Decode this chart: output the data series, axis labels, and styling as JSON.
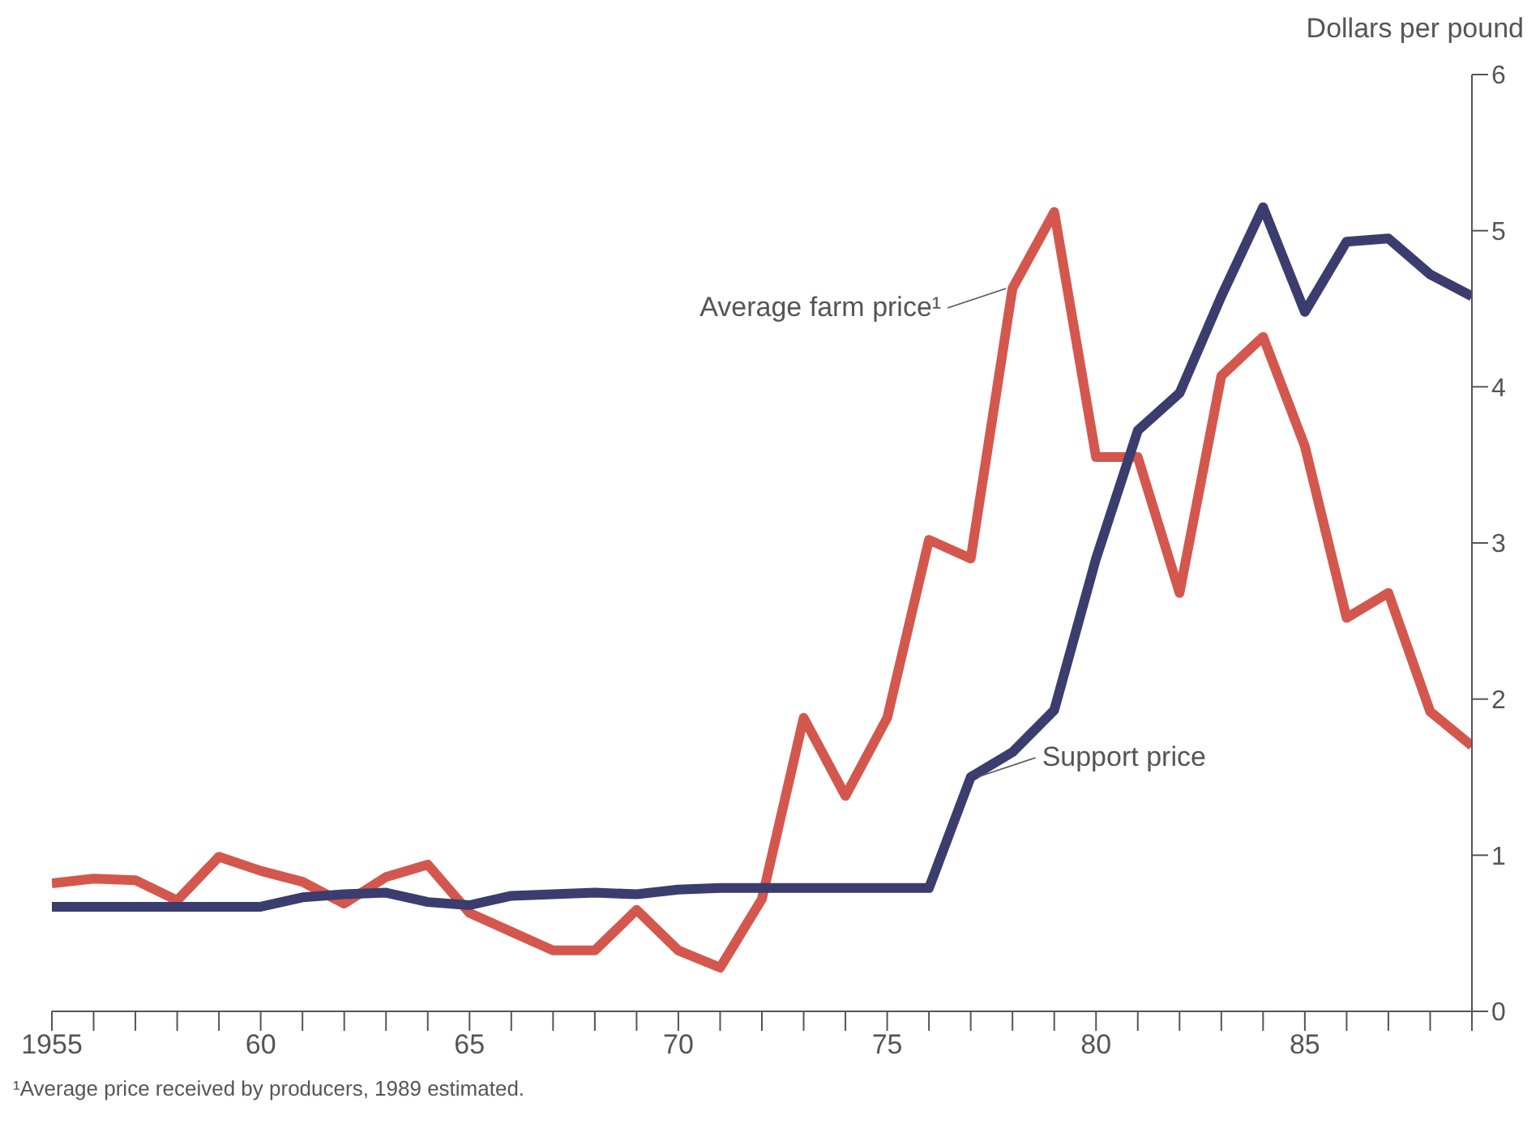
{
  "chart_data": {
    "type": "line",
    "ylabel": "Dollars per pound",
    "x": [
      1955,
      1956,
      1957,
      1958,
      1959,
      1960,
      1961,
      1962,
      1963,
      1964,
      1965,
      1966,
      1967,
      1968,
      1969,
      1970,
      1971,
      1972,
      1973,
      1974,
      1975,
      1976,
      1977,
      1978,
      1979,
      1980,
      1981,
      1982,
      1983,
      1984,
      1985,
      1986,
      1987,
      1988,
      1989
    ],
    "series": [
      {
        "name": "Average farm price¹",
        "color": "#d4574e",
        "values": [
          0.82,
          0.85,
          0.84,
          0.71,
          0.99,
          0.9,
          0.83,
          0.69,
          0.86,
          0.94,
          0.63,
          0.51,
          0.39,
          0.39,
          0.65,
          0.39,
          0.28,
          0.72,
          1.88,
          1.38,
          1.88,
          3.02,
          2.9,
          4.63,
          5.12,
          3.55,
          3.55,
          2.68,
          4.07,
          4.32,
          3.62,
          2.52,
          2.68,
          1.92,
          1.7
        ]
      },
      {
        "name": "Support price",
        "color": "#3a3d6e",
        "values": [
          0.67,
          0.67,
          0.67,
          0.67,
          0.67,
          0.67,
          0.73,
          0.75,
          0.76,
          0.7,
          0.68,
          0.74,
          0.75,
          0.76,
          0.75,
          0.78,
          0.79,
          0.79,
          0.79,
          0.79,
          0.79,
          0.79,
          1.5,
          1.66,
          1.93,
          2.9,
          3.72,
          3.96,
          4.58,
          5.15,
          4.48,
          4.93,
          4.95,
          4.72,
          4.58
        ]
      }
    ],
    "xlim": [
      1955,
      1989
    ],
    "xticks": [
      1955,
      {
        "value": 1956,
        "label": null
      },
      {
        "value": 1957,
        "label": null
      },
      {
        "value": 1958,
        "label": null
      },
      {
        "value": 1959,
        "label": null
      },
      {
        "value": 1960,
        "label": "60"
      },
      {
        "value": 1961,
        "label": null
      },
      {
        "value": 1962,
        "label": null
      },
      {
        "value": 1963,
        "label": null
      },
      {
        "value": 1964,
        "label": null
      },
      {
        "value": 1965,
        "label": "65"
      },
      {
        "value": 1966,
        "label": null
      },
      {
        "value": 1967,
        "label": null
      },
      {
        "value": 1968,
        "label": null
      },
      {
        "value": 1969,
        "label": null
      },
      {
        "value": 1970,
        "label": "70"
      },
      {
        "value": 1971,
        "label": null
      },
      {
        "value": 1972,
        "label": null
      },
      {
        "value": 1973,
        "label": null
      },
      {
        "value": 1974,
        "label": null
      },
      {
        "value": 1975,
        "label": "75"
      },
      {
        "value": 1976,
        "label": null
      },
      {
        "value": 1977,
        "label": null
      },
      {
        "value": 1978,
        "label": null
      },
      {
        "value": 1979,
        "label": null
      },
      {
        "value": 1980,
        "label": "80"
      },
      {
        "value": 1981,
        "label": null
      },
      {
        "value": 1982,
        "label": null
      },
      {
        "value": 1983,
        "label": null
      },
      {
        "value": 1984,
        "label": null
      },
      {
        "value": 1985,
        "label": "85"
      },
      {
        "value": 1986,
        "label": null
      },
      {
        "value": 1987,
        "label": null
      },
      {
        "value": 1988,
        "label": null
      },
      {
        "value": 1989,
        "label": null
      }
    ],
    "ylim": [
      0,
      6
    ],
    "yticks": [
      0,
      1,
      2,
      3,
      4,
      5,
      6
    ],
    "grid": false,
    "legend": false,
    "marker": "none",
    "line_style": "solid",
    "annotations": [
      "¹Average price received by producers, 1989 estimated."
    ]
  }
}
